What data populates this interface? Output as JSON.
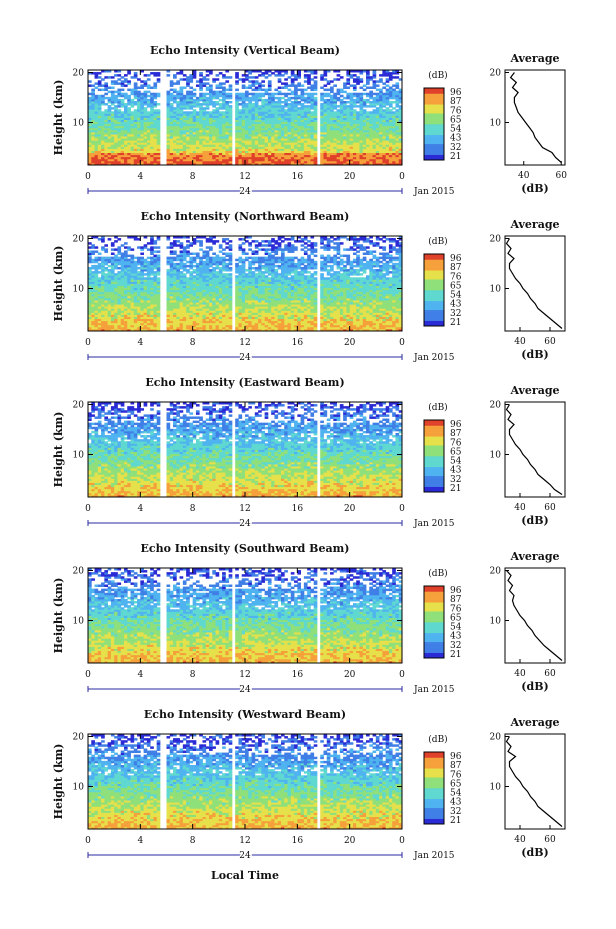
{
  "figure": {
    "x_axis_title": "Local Time",
    "date_label": "Jan 2015",
    "day_label": "24",
    "colorbar_unit": "(dB)",
    "colorbar_ticks": [
      [
        "96",
        "87",
        "76",
        "65",
        "54",
        "43",
        "32",
        "21"
      ],
      [
        "96",
        "87",
        "76",
        "65",
        "54",
        "43",
        "32",
        "21"
      ],
      [
        "96",
        "87",
        "76",
        "65",
        "54",
        "43",
        "32",
        "21"
      ],
      [
        "96",
        "87",
        "76",
        "65",
        "54",
        "43",
        "32",
        "21"
      ],
      [
        "96",
        "87",
        "76",
        "65",
        "54",
        "43",
        "32",
        "21"
      ]
    ],
    "colors": [
      "#2b2bd6",
      "#3f7fe6",
      "#4fb3f0",
      "#5fd8d0",
      "#8fe07a",
      "#e6e04a",
      "#f5a03a",
      "#e0402a"
    ]
  },
  "chart_data": [
    {
      "type": "heatmap",
      "title": "Echo Intensity (Vertical Beam)",
      "xlabel": "",
      "ylabel": "Height (km)",
      "xlim": [
        0,
        24
      ],
      "ylim": [
        1.5,
        20.5
      ],
      "x_ticks": [
        "0",
        "4",
        "8",
        "12",
        "16",
        "20",
        "0"
      ],
      "y_ticks": [
        "10",
        "20"
      ],
      "colorbar_range": [
        21,
        96
      ],
      "data_gaps_hours": [
        [
          5.4,
          5.9
        ],
        [
          10.9,
          11.3
        ],
        [
          17.5,
          17.8
        ]
      ],
      "profile": {
        "title": "Average",
        "xlabel": "(dB)",
        "xlim": [
          30,
          62
        ],
        "x_ticks": [
          "40",
          "60"
        ],
        "y_ticks": [
          "10",
          "20"
        ],
        "height_km": [
          2,
          3,
          4,
          5,
          6,
          7,
          8,
          9,
          10,
          11,
          12,
          13,
          14,
          15,
          16,
          17,
          18,
          19,
          20
        ],
        "mean_db": [
          60,
          57,
          55,
          50,
          48,
          46,
          45,
          43,
          41,
          39,
          37,
          36,
          35,
          35,
          37,
          34,
          36,
          33,
          35
        ]
      }
    },
    {
      "type": "heatmap",
      "title": "Echo Intensity (Northward Beam)",
      "xlabel": "",
      "ylabel": "Height (km)",
      "xlim": [
        0,
        24
      ],
      "ylim": [
        1.5,
        20.5
      ],
      "x_ticks": [
        "0",
        "4",
        "8",
        "12",
        "16",
        "20",
        "0"
      ],
      "y_ticks": [
        "10",
        "20"
      ],
      "colorbar_range": [
        21,
        96
      ],
      "data_gaps_hours": [
        [
          5.4,
          5.9
        ],
        [
          10.9,
          11.3
        ],
        [
          17.5,
          17.8
        ]
      ],
      "profile": {
        "title": "Average",
        "xlabel": "(dB)",
        "xlim": [
          30,
          70
        ],
        "x_ticks": [
          "40",
          "60"
        ],
        "y_ticks": [
          "10",
          "20"
        ],
        "height_km": [
          2,
          3,
          4,
          5,
          6,
          7,
          8,
          9,
          10,
          11,
          12,
          13,
          14,
          15,
          16,
          17,
          18,
          19,
          20
        ],
        "mean_db": [
          68,
          64,
          60,
          56,
          52,
          50,
          47,
          45,
          42,
          40,
          37,
          35,
          33,
          33,
          36,
          32,
          34,
          31,
          33
        ]
      }
    },
    {
      "type": "heatmap",
      "title": "Echo Intensity (Eastward Beam)",
      "xlabel": "",
      "ylabel": "Height (km)",
      "xlim": [
        0,
        24
      ],
      "ylim": [
        1.5,
        20.5
      ],
      "x_ticks": [
        "0",
        "4",
        "8",
        "12",
        "16",
        "20",
        "0"
      ],
      "y_ticks": [
        "10",
        "20"
      ],
      "colorbar_range": [
        21,
        96
      ],
      "data_gaps_hours": [
        [
          5.4,
          5.9
        ],
        [
          10.9,
          11.3
        ],
        [
          17.5,
          17.8
        ]
      ],
      "profile": {
        "title": "Average",
        "xlabel": "(dB)",
        "xlim": [
          30,
          70
        ],
        "x_ticks": [
          "40",
          "60"
        ],
        "y_ticks": [
          "10",
          "20"
        ],
        "height_km": [
          2,
          3,
          4,
          5,
          6,
          7,
          8,
          9,
          10,
          11,
          12,
          13,
          14,
          15,
          16,
          17,
          18,
          19,
          20
        ],
        "mean_db": [
          68,
          63,
          60,
          56,
          52,
          50,
          47,
          45,
          42,
          40,
          37,
          35,
          33,
          33,
          36,
          32,
          34,
          31,
          33
        ]
      }
    },
    {
      "type": "heatmap",
      "title": "Echo Intensity (Southward Beam)",
      "xlabel": "",
      "ylabel": "Height (km)",
      "xlim": [
        0,
        24
      ],
      "ylim": [
        1.5,
        20.5
      ],
      "x_ticks": [
        "0",
        "4",
        "8",
        "12",
        "16",
        "20",
        "0"
      ],
      "y_ticks": [
        "10",
        "20"
      ],
      "colorbar_range": [
        21,
        96
      ],
      "data_gaps_hours": [
        [
          5.4,
          5.9
        ],
        [
          10.9,
          11.3
        ],
        [
          17.5,
          17.8
        ]
      ],
      "profile": {
        "title": "Average",
        "xlabel": "(dB)",
        "xlim": [
          30,
          70
        ],
        "x_ticks": [
          "40",
          "60"
        ],
        "y_ticks": [
          "10",
          "20"
        ],
        "height_km": [
          2,
          3,
          4,
          5,
          6,
          7,
          8,
          9,
          10,
          11,
          12,
          13,
          14,
          15,
          16,
          17,
          18,
          19,
          20
        ],
        "mean_db": [
          68,
          64,
          60,
          56,
          53,
          50,
          48,
          45,
          43,
          40,
          38,
          36,
          35,
          36,
          33,
          35,
          32,
          34,
          31
        ]
      }
    },
    {
      "type": "heatmap",
      "title": "Echo Intensity (Westward Beam)",
      "xlabel": "",
      "ylabel": "Height (km)",
      "xlim": [
        0,
        24
      ],
      "ylim": [
        1.5,
        20.5
      ],
      "x_ticks": [
        "0",
        "4",
        "8",
        "12",
        "16",
        "20",
        "0"
      ],
      "y_ticks": [
        "10",
        "20"
      ],
      "colorbar_range": [
        21,
        96
      ],
      "data_gaps_hours": [
        [
          5.4,
          5.9
        ],
        [
          10.9,
          11.3
        ],
        [
          17.5,
          17.8
        ]
      ],
      "profile": {
        "title": "Average",
        "xlabel": "(dB)",
        "xlim": [
          30,
          70
        ],
        "x_ticks": [
          "40",
          "60"
        ],
        "y_ticks": [
          "10",
          "20"
        ],
        "height_km": [
          2,
          3,
          4,
          5,
          6,
          7,
          8,
          9,
          10,
          11,
          12,
          13,
          14,
          15,
          16,
          17,
          18,
          19,
          20
        ],
        "mean_db": [
          68,
          64,
          60,
          56,
          52,
          50,
          47,
          45,
          42,
          40,
          37,
          35,
          33,
          33,
          37,
          32,
          34,
          31,
          33
        ]
      }
    }
  ]
}
